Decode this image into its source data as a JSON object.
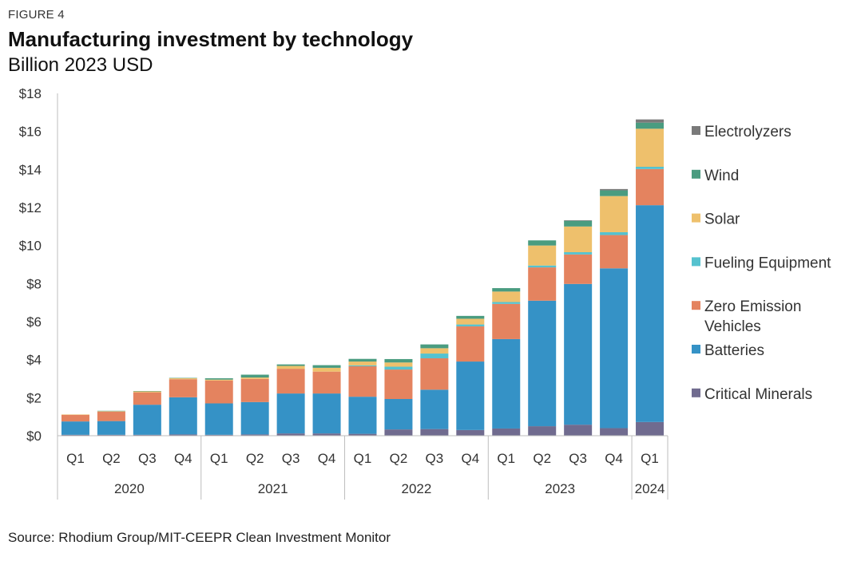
{
  "figure_label": "FIGURE 4",
  "source": "Source: Rhodium Group/MIT-CEEPR Clean Investment Monitor",
  "chart_data": {
    "type": "bar",
    "stacked": true,
    "title": "Manufacturing investment by technology",
    "subtitle": "Billion 2023 USD",
    "xlabel": "",
    "ylabel": "",
    "ylim": [
      0,
      18
    ],
    "y_ticks": [
      0,
      2,
      4,
      6,
      8,
      10,
      12,
      14,
      16,
      18
    ],
    "y_tick_labels": [
      "$0",
      "$2",
      "$4",
      "$6",
      "$8",
      "$10",
      "$12",
      "$14",
      "$16",
      "$18"
    ],
    "categories": [
      "Q1",
      "Q2",
      "Q3",
      "Q4",
      "Q1",
      "Q2",
      "Q3",
      "Q4",
      "Q1",
      "Q2",
      "Q3",
      "Q4",
      "Q1",
      "Q2",
      "Q3",
      "Q4",
      "Q1"
    ],
    "year_groups": [
      {
        "label": "2020",
        "count": 4
      },
      {
        "label": "2021",
        "count": 4
      },
      {
        "label": "2022",
        "count": 4
      },
      {
        "label": "2023",
        "count": 4
      },
      {
        "label": "2024",
        "count": 1
      }
    ],
    "series": [
      {
        "name": "Critical Minerals",
        "color": "#706b8f",
        "values": [
          0.05,
          0.05,
          0.05,
          0.07,
          0.05,
          0.07,
          0.12,
          0.12,
          0.1,
          0.33,
          0.35,
          0.3,
          0.38,
          0.5,
          0.58,
          0.4,
          0.72
        ]
      },
      {
        "name": "Batteries",
        "color": "#3592c6",
        "values": [
          0.7,
          0.72,
          1.58,
          1.95,
          1.65,
          1.7,
          2.1,
          2.1,
          1.95,
          1.6,
          2.07,
          3.6,
          4.7,
          6.6,
          7.4,
          8.4,
          11.4
        ]
      },
      {
        "name": "Zero Emission Vehicles",
        "color": "#e4835f",
        "values": [
          0.35,
          0.5,
          0.65,
          0.95,
          1.2,
          1.22,
          1.3,
          1.15,
          1.6,
          1.55,
          1.65,
          1.85,
          1.85,
          1.75,
          1.55,
          1.75,
          1.9
        ]
      },
      {
        "name": "Fueling Equipment",
        "color": "#55c2cf",
        "values": [
          0,
          0,
          0,
          0,
          0,
          0,
          0,
          0,
          0.05,
          0.15,
          0.25,
          0.1,
          0.1,
          0.1,
          0.12,
          0.15,
          0.12
        ]
      },
      {
        "name": "Solar",
        "color": "#eec06c",
        "values": [
          0.02,
          0.02,
          0.05,
          0.05,
          0.05,
          0.07,
          0.15,
          0.2,
          0.2,
          0.22,
          0.28,
          0.3,
          0.55,
          1.05,
          1.35,
          1.9,
          2.0
        ]
      },
      {
        "name": "Wind",
        "color": "#4a9c80",
        "values": [
          0,
          0.02,
          0.02,
          0.02,
          0.07,
          0.15,
          0.08,
          0.14,
          0.14,
          0.18,
          0.2,
          0.15,
          0.18,
          0.27,
          0.3,
          0.3,
          0.32
        ]
      },
      {
        "name": "Electrolyzers",
        "color": "#7a7a7a",
        "values": [
          0,
          0,
          0,
          0,
          0,
          0,
          0,
          0,
          0,
          0,
          0,
          0,
          0,
          0,
          0.03,
          0.07,
          0.17
        ]
      }
    ],
    "legend_order": [
      "Electrolyzers",
      "Wind",
      "Solar",
      "Fueling Equipment",
      "Zero Emission Vehicles",
      "Batteries",
      "Critical Minerals"
    ],
    "legend_lines": {
      "Zero Emission Vehicles": [
        "Zero Emission",
        "Vehicles"
      ]
    },
    "legend_position": "right",
    "grid": false
  }
}
